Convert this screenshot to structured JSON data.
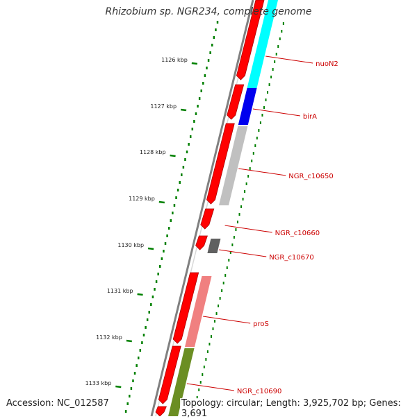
{
  "title": "Rhizobium sp. NGR234, complete genome",
  "accession": "Accession: NC_012587",
  "topology": "Topology: circular; Length: 3,925,702 bp; Genes: 3,691",
  "ticks": [
    "1126 kbp",
    "1127 kbp",
    "1128 kbp",
    "1129 kbp",
    "1130 kbp",
    "1131 kbp",
    "1132 kbp",
    "1133 kbp"
  ],
  "genes": [
    {
      "label": "nuoN2",
      "color": "#00ffff"
    },
    {
      "label": "birA",
      "color": "#0000ee"
    },
    {
      "label": "NGR_c10650",
      "color": "#c0c0c0"
    },
    {
      "label": "NGR_c10660",
      "color": "#ffffff"
    },
    {
      "label": "NGR_c10670",
      "color": "#606060"
    },
    {
      "label": "proS",
      "color": "#f08080"
    },
    {
      "label": "NGR_c10690",
      "color": "#6b8e23"
    }
  ],
  "colors": {
    "cds": "#ff0000",
    "backbone": "#808080",
    "gc": "#008000",
    "label": "#cc0000"
  }
}
